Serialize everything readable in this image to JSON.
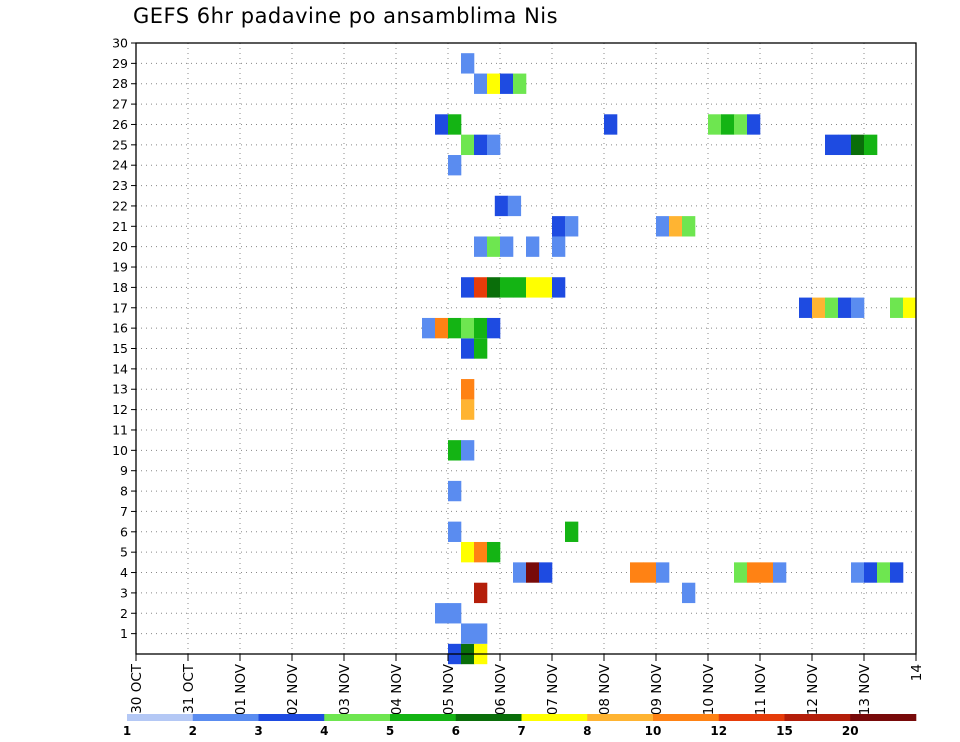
{
  "chart_data": {
    "type": "heatmap",
    "title": "GEFS 6hr padavine po ansamblima Nis",
    "xlabel": "",
    "ylabel": "",
    "x_ticks": [
      "30 OCT",
      "31 OCT",
      "01 NOV",
      "02 NOV",
      "03 NOV",
      "04 NOV",
      "05 NOV",
      "06 NOV",
      "07 NOV",
      "08 NOV",
      "09 NOV",
      "10 NOV",
      "11 NOV",
      "12 NOV",
      "13 NOV",
      "14"
    ],
    "y_ticks": [
      1,
      2,
      3,
      4,
      5,
      6,
      7,
      8,
      9,
      10,
      11,
      12,
      13,
      14,
      15,
      16,
      17,
      18,
      19,
      20,
      21,
      22,
      23,
      24,
      25,
      26,
      27,
      28,
      29,
      30
    ],
    "ylim": [
      0,
      30
    ],
    "xlim_days": [
      0,
      15
    ],
    "grid": true,
    "colorbar": {
      "labels": [
        "1",
        "2",
        "3",
        "4",
        "5",
        "6",
        "7",
        "8",
        "10",
        "12",
        "15",
        "20"
      ],
      "colors": [
        "#b4c8f5",
        "#5a8cf0",
        "#1e4be1",
        "#6ee650",
        "#14b414",
        "#0a6e0a",
        "#ffff00",
        "#ffb432",
        "#ff8214",
        "#e63c0a",
        "#b41e0a",
        "#780a0a"
      ]
    },
    "cells": [
      [
        6.0,
        0,
        2
      ],
      [
        6.25,
        0,
        5
      ],
      [
        6.5,
        0,
        6
      ],
      [
        6.25,
        1,
        1
      ],
      [
        6.5,
        1,
        1
      ],
      [
        5.75,
        2,
        1
      ],
      [
        6.0,
        2,
        1
      ],
      [
        6.5,
        3,
        10
      ],
      [
        7.25,
        4,
        1
      ],
      [
        7.5,
        4,
        11
      ],
      [
        7.75,
        4,
        2
      ],
      [
        9.5,
        4,
        8
      ],
      [
        9.75,
        4,
        8
      ],
      [
        10.0,
        4,
        1
      ],
      [
        11.5,
        4,
        3
      ],
      [
        11.75,
        4,
        8
      ],
      [
        12.0,
        4,
        8
      ],
      [
        12.25,
        4,
        1
      ],
      [
        13.75,
        4,
        1
      ],
      [
        14.0,
        4,
        2
      ],
      [
        14.25,
        4,
        3
      ],
      [
        14.5,
        4,
        2
      ],
      [
        10.5,
        3,
        1
      ],
      [
        6.25,
        5,
        6
      ],
      [
        6.5,
        5,
        8
      ],
      [
        6.75,
        5,
        4
      ],
      [
        6.0,
        6,
        1
      ],
      [
        8.25,
        6,
        4
      ],
      [
        6.0,
        8,
        1
      ],
      [
        6.0,
        10,
        4
      ],
      [
        6.25,
        10,
        1
      ],
      [
        6.25,
        12,
        7
      ],
      [
        6.25,
        13,
        8
      ],
      [
        6.25,
        15,
        2
      ],
      [
        6.5,
        15,
        4
      ],
      [
        5.5,
        16,
        1
      ],
      [
        5.75,
        16,
        8
      ],
      [
        6.0,
        16,
        4
      ],
      [
        6.25,
        16,
        3
      ],
      [
        6.5,
        16,
        4
      ],
      [
        6.75,
        16,
        2
      ],
      [
        12.75,
        17,
        2
      ],
      [
        13.0,
        17,
        7
      ],
      [
        13.25,
        17,
        3
      ],
      [
        13.5,
        17,
        2
      ],
      [
        13.75,
        17,
        1
      ],
      [
        14.5,
        17,
        3
      ],
      [
        14.75,
        17,
        6
      ],
      [
        6.25,
        18,
        2
      ],
      [
        6.5,
        18,
        9
      ],
      [
        6.75,
        18,
        5
      ],
      [
        7.0,
        18,
        4
      ],
      [
        7.25,
        18,
        4
      ],
      [
        7.5,
        18,
        6
      ],
      [
        7.75,
        18,
        6
      ],
      [
        8.0,
        18,
        2
      ],
      [
        6.5,
        20,
        1
      ],
      [
        6.75,
        20,
        3
      ],
      [
        7.0,
        20,
        1
      ],
      [
        7.5,
        20,
        1
      ],
      [
        8.0,
        20,
        1
      ],
      [
        8.0,
        21,
        2
      ],
      [
        8.25,
        21,
        1
      ],
      [
        10.0,
        21,
        1
      ],
      [
        10.25,
        21,
        7
      ],
      [
        10.5,
        21,
        3
      ],
      [
        6.9,
        22,
        2
      ],
      [
        7.15,
        22,
        1
      ],
      [
        6.0,
        24,
        1
      ],
      [
        6.25,
        25,
        3
      ],
      [
        6.5,
        25,
        2
      ],
      [
        6.75,
        25,
        1
      ],
      [
        13.25,
        25,
        2
      ],
      [
        13.5,
        25,
        2
      ],
      [
        13.75,
        25,
        5
      ],
      [
        14.0,
        25,
        4
      ],
      [
        5.75,
        26,
        2
      ],
      [
        6.0,
        26,
        4
      ],
      [
        9.0,
        26,
        2
      ],
      [
        11.0,
        26,
        3
      ],
      [
        11.25,
        26,
        4
      ],
      [
        11.5,
        26,
        3
      ],
      [
        11.75,
        26,
        2
      ],
      [
        6.5,
        28,
        1
      ],
      [
        6.75,
        28,
        6
      ],
      [
        7.0,
        28,
        2
      ],
      [
        7.25,
        28,
        3
      ],
      [
        6.25,
        29,
        1
      ]
    ]
  }
}
